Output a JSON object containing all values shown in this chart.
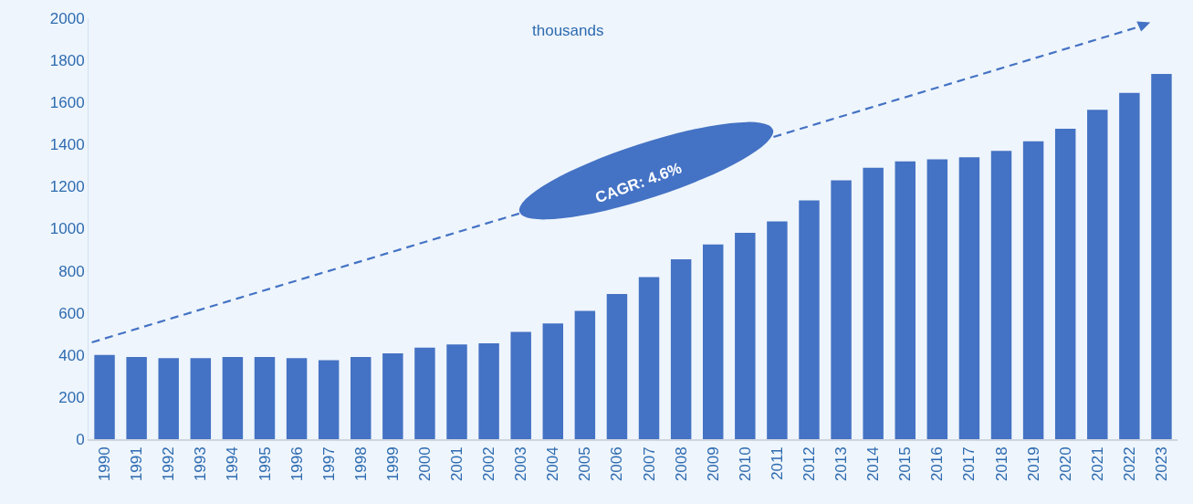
{
  "chart_data": {
    "type": "bar",
    "categories": [
      "1990",
      "1991",
      "1992",
      "1993",
      "1994",
      "1995",
      "1996",
      "1997",
      "1998",
      "1999",
      "2000",
      "2001",
      "2002",
      "2003",
      "2004",
      "2005",
      "2006",
      "2007",
      "2008",
      "2009",
      "2010",
      "2011",
      "2012",
      "2013",
      "2014",
      "2015",
      "2016",
      "2017",
      "2018",
      "2019",
      "2020",
      "2021",
      "2022",
      "2023"
    ],
    "values": [
      400,
      390,
      385,
      385,
      390,
      390,
      385,
      375,
      390,
      408,
      435,
      450,
      455,
      510,
      550,
      610,
      690,
      770,
      855,
      925,
      980,
      1035,
      1135,
      1230,
      1290,
      1320,
      1330,
      1340,
      1370,
      1415,
      1475,
      1565,
      1645,
      1735
    ],
    "color": "#4472c4",
    "ylim": [
      0,
      2000
    ],
    "yticks": [
      0,
      200,
      400,
      600,
      800,
      1000,
      1200,
      1400,
      1600,
      1800,
      2000
    ],
    "grid": false,
    "annotations": [
      "thousands",
      "CAGR: 4.6%"
    ]
  }
}
